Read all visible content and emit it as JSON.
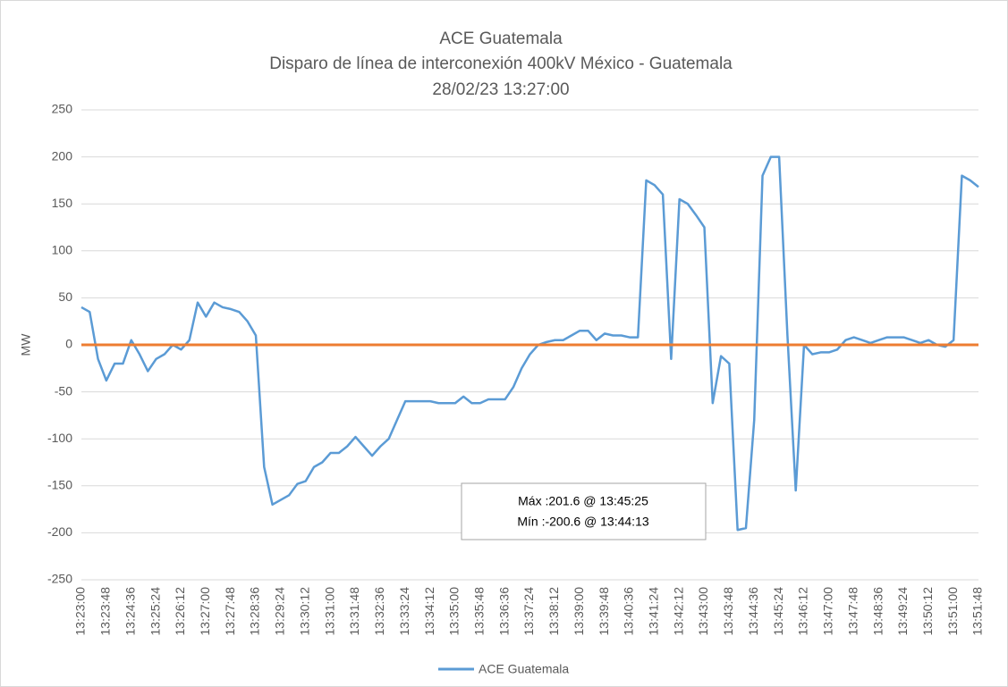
{
  "chart_data": {
    "type": "line",
    "title": "ACE Guatemala",
    "subtitle": [
      "Disparo de línea de interconexión 400kV México - Guatemala",
      "28/02/23 13:27:00"
    ],
    "y_label": "MW",
    "ylim": [
      -250,
      250
    ],
    "yticks": [
      -250,
      -200,
      -150,
      -100,
      -50,
      0,
      50,
      100,
      150,
      200,
      250
    ],
    "grid": true,
    "legend": "bottom",
    "categories": [
      "13:23:00",
      null,
      null,
      "13:23:48",
      null,
      null,
      "13:24:36",
      null,
      null,
      "13:25:24",
      null,
      null,
      "13:26:12",
      null,
      null,
      "13:27:00",
      null,
      null,
      "13:27:48",
      null,
      null,
      "13:28:36",
      null,
      null,
      "13:29:24",
      null,
      null,
      "13:30:12",
      null,
      null,
      "13:31:00",
      null,
      null,
      "13:31:48",
      null,
      null,
      "13:32:36",
      null,
      null,
      "13:33:24",
      null,
      null,
      "13:34:12",
      null,
      null,
      "13:35:00",
      null,
      null,
      "13:35:48",
      null,
      null,
      "13:36:36",
      null,
      null,
      "13:37:24",
      null,
      null,
      "13:38:12",
      null,
      null,
      "13:39:00",
      null,
      null,
      "13:39:48",
      null,
      null,
      "13:40:36",
      null,
      null,
      "13:41:24",
      null,
      null,
      "13:42:12",
      null,
      null,
      "13:43:00",
      null,
      null,
      "13:43:48",
      null,
      null,
      "13:44:36",
      null,
      null,
      "13:45:24",
      null,
      null,
      "13:46:12",
      null,
      null,
      "13:47:00",
      null,
      null,
      "13:47:48",
      null,
      null,
      "13:48:36",
      null,
      null,
      "13:49:24",
      null,
      null,
      "13:50:12",
      null,
      null,
      "13:51:00",
      null,
      null,
      "13:51:48"
    ],
    "series": [
      {
        "name": "ACE Guatemala",
        "color": "#5b9bd5",
        "values": [
          40,
          35,
          -15,
          -38,
          -20,
          -20,
          5,
          -10,
          -28,
          -15,
          -10,
          0,
          -5,
          5,
          45,
          30,
          45,
          40,
          38,
          35,
          25,
          10,
          -130,
          -170,
          -165,
          -160,
          -148,
          -145,
          -130,
          -125,
          -115,
          -115,
          -108,
          -98,
          -108,
          -118,
          -108,
          -100,
          -80,
          -60,
          -60,
          -60,
          -60,
          -62,
          -62,
          -62,
          -55,
          -62,
          -62,
          -58,
          -58,
          -58,
          -45,
          -25,
          -10,
          0,
          3,
          5,
          5,
          10,
          15,
          15,
          5,
          12,
          10,
          10,
          8,
          8,
          175,
          170,
          160,
          -15,
          155,
          150,
          138,
          125,
          -62,
          -12,
          -20,
          -197,
          -195,
          -80,
          180,
          200,
          200,
          10,
          -155,
          0,
          -10,
          -8,
          -8,
          -5,
          5,
          8,
          5,
          2,
          5,
          8,
          8,
          8,
          5,
          2,
          5,
          0,
          -2,
          5,
          180,
          175,
          168
        ]
      }
    ],
    "reference_line": {
      "value": 0,
      "color": "#ed7d31"
    },
    "annotation": [
      "Máx :201.6 @ 13:45:25",
      "Mín :-200.6 @ 13:44:13"
    ]
  }
}
